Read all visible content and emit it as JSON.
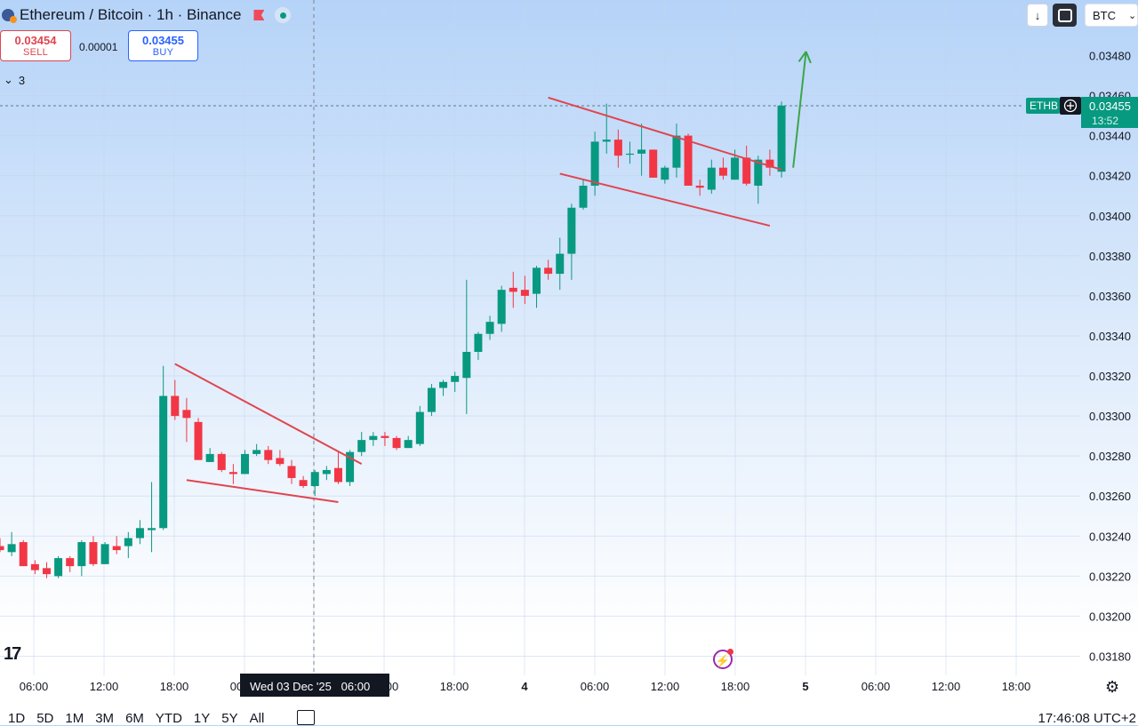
{
  "header": {
    "title": "Ethereum / Bitcoin · 1h · Binance",
    "sell_price": "0.03454",
    "sell_label": "SELL",
    "spread": "0.00001",
    "buy_price": "0.03455",
    "buy_label": "BUY",
    "indicators_count": "3"
  },
  "toolbar": {
    "currency": "BTC"
  },
  "timeframes": [
    "1D",
    "5D",
    "1M",
    "3M",
    "6M",
    "YTD",
    "1Y",
    "5Y",
    "All"
  ],
  "clock": "17:46:08 UTC+2",
  "crosshair_label": "Wed 03 Dec '25   06:00",
  "colors": {
    "up": "#089981",
    "down": "#f23645",
    "pattern": "#e0454f",
    "arrow": "#3aa64a"
  },
  "chart_data": {
    "type": "candlestick",
    "symbol": "ETHBTC",
    "timeframe": "1h",
    "current_price": "0.03455",
    "countdown": "13:52",
    "price_tag_label": "ETHB",
    "ylim": [
      0.03172,
      0.03496
    ],
    "y_ticks": [
      "0.03480",
      "0.03460",
      "0.03440",
      "0.03420",
      "0.03400",
      "0.03380",
      "0.03360",
      "0.03340",
      "0.03320",
      "0.03300",
      "0.03280",
      "0.03260",
      "0.03240",
      "0.03220",
      "0.03200",
      "0.03180"
    ],
    "x_ticks": [
      "06:00",
      "12:00",
      "18:00",
      "00:00",
      "06:00",
      "12:00",
      "18:00",
      "4",
      "06:00",
      "12:00",
      "18:00",
      "5",
      "06:00",
      "12:00",
      "18:00"
    ],
    "candles": [
      {
        "o": 0.03235,
        "h": 0.03239,
        "l": 0.03232,
        "c": 0.03233
      },
      {
        "o": 0.03232,
        "h": 0.03242,
        "l": 0.0323,
        "c": 0.03236
      },
      {
        "o": 0.03237,
        "h": 0.03238,
        "l": 0.03225,
        "c": 0.03225
      },
      {
        "o": 0.03226,
        "h": 0.03228,
        "l": 0.03221,
        "c": 0.03223
      },
      {
        "o": 0.03224,
        "h": 0.03227,
        "l": 0.03219,
        "c": 0.03221
      },
      {
        "o": 0.0322,
        "h": 0.0323,
        "l": 0.03219,
        "c": 0.03229
      },
      {
        "o": 0.03229,
        "h": 0.0323,
        "l": 0.03222,
        "c": 0.03225
      },
      {
        "o": 0.03225,
        "h": 0.03238,
        "l": 0.0322,
        "c": 0.03237
      },
      {
        "o": 0.03237,
        "h": 0.0324,
        "l": 0.03225,
        "c": 0.03226
      },
      {
        "o": 0.03226,
        "h": 0.03237,
        "l": 0.03226,
        "c": 0.03236
      },
      {
        "o": 0.03235,
        "h": 0.0324,
        "l": 0.03231,
        "c": 0.03233
      },
      {
        "o": 0.03235,
        "h": 0.03242,
        "l": 0.03229,
        "c": 0.03239
      },
      {
        "o": 0.03239,
        "h": 0.03248,
        "l": 0.03236,
        "c": 0.03244
      },
      {
        "o": 0.03243,
        "h": 0.03267,
        "l": 0.03232,
        "c": 0.03244
      },
      {
        "o": 0.03244,
        "h": 0.03325,
        "l": 0.03243,
        "c": 0.0331
      },
      {
        "o": 0.0331,
        "h": 0.03318,
        "l": 0.03298,
        "c": 0.033
      },
      {
        "o": 0.03303,
        "h": 0.03309,
        "l": 0.03287,
        "c": 0.03299
      },
      {
        "o": 0.03297,
        "h": 0.03299,
        "l": 0.03278,
        "c": 0.03278
      },
      {
        "o": 0.03277,
        "h": 0.03284,
        "l": 0.03277,
        "c": 0.03281
      },
      {
        "o": 0.03281,
        "h": 0.03282,
        "l": 0.03272,
        "c": 0.03273
      },
      {
        "o": 0.03272,
        "h": 0.03276,
        "l": 0.03266,
        "c": 0.03271
      },
      {
        "o": 0.03271,
        "h": 0.03283,
        "l": 0.03271,
        "c": 0.03281
      },
      {
        "o": 0.03281,
        "h": 0.03286,
        "l": 0.0328,
        "c": 0.03283
      },
      {
        "o": 0.03283,
        "h": 0.03285,
        "l": 0.03276,
        "c": 0.03278
      },
      {
        "o": 0.03279,
        "h": 0.03283,
        "l": 0.03275,
        "c": 0.03276
      },
      {
        "o": 0.03275,
        "h": 0.03278,
        "l": 0.03266,
        "c": 0.03269
      },
      {
        "o": 0.03268,
        "h": 0.0327,
        "l": 0.03264,
        "c": 0.03265
      },
      {
        "o": 0.03265,
        "h": 0.03273,
        "l": 0.0326,
        "c": 0.03272
      },
      {
        "o": 0.03271,
        "h": 0.03275,
        "l": 0.03268,
        "c": 0.03273
      },
      {
        "o": 0.03274,
        "h": 0.03282,
        "l": 0.03266,
        "c": 0.03267
      },
      {
        "o": 0.03267,
        "h": 0.03283,
        "l": 0.03265,
        "c": 0.03282
      },
      {
        "o": 0.03282,
        "h": 0.03292,
        "l": 0.0328,
        "c": 0.03288
      },
      {
        "o": 0.03288,
        "h": 0.03292,
        "l": 0.03285,
        "c": 0.0329
      },
      {
        "o": 0.0329,
        "h": 0.03292,
        "l": 0.03285,
        "c": 0.03289
      },
      {
        "o": 0.03289,
        "h": 0.0329,
        "l": 0.03283,
        "c": 0.03284
      },
      {
        "o": 0.03284,
        "h": 0.0329,
        "l": 0.03284,
        "c": 0.03288
      },
      {
        "o": 0.03286,
        "h": 0.03305,
        "l": 0.03285,
        "c": 0.03302
      },
      {
        "o": 0.03302,
        "h": 0.03316,
        "l": 0.033,
        "c": 0.03314
      },
      {
        "o": 0.03314,
        "h": 0.03318,
        "l": 0.0331,
        "c": 0.03317
      },
      {
        "o": 0.03317,
        "h": 0.03322,
        "l": 0.03312,
        "c": 0.0332
      },
      {
        "o": 0.03319,
        "h": 0.03368,
        "l": 0.03301,
        "c": 0.03332
      },
      {
        "o": 0.03332,
        "h": 0.03342,
        "l": 0.03328,
        "c": 0.03341
      },
      {
        "o": 0.03341,
        "h": 0.0335,
        "l": 0.03338,
        "c": 0.03347
      },
      {
        "o": 0.03346,
        "h": 0.03365,
        "l": 0.03342,
        "c": 0.03363
      },
      {
        "o": 0.03364,
        "h": 0.03372,
        "l": 0.03354,
        "c": 0.03362
      },
      {
        "o": 0.03363,
        "h": 0.0337,
        "l": 0.03356,
        "c": 0.0336
      },
      {
        "o": 0.03361,
        "h": 0.03375,
        "l": 0.03354,
        "c": 0.03374
      },
      {
        "o": 0.03374,
        "h": 0.03378,
        "l": 0.03368,
        "c": 0.03371
      },
      {
        "o": 0.03371,
        "h": 0.03389,
        "l": 0.03363,
        "c": 0.03381
      },
      {
        "o": 0.03381,
        "h": 0.03406,
        "l": 0.03368,
        "c": 0.03404
      },
      {
        "o": 0.03404,
        "h": 0.03418,
        "l": 0.03403,
        "c": 0.03415
      },
      {
        "o": 0.03415,
        "h": 0.03442,
        "l": 0.0341,
        "c": 0.03437
      },
      {
        "o": 0.03437,
        "h": 0.03456,
        "l": 0.03431,
        "c": 0.03438
      },
      {
        "o": 0.03438,
        "h": 0.03443,
        "l": 0.03424,
        "c": 0.0343
      },
      {
        "o": 0.03431,
        "h": 0.03437,
        "l": 0.03426,
        "c": 0.03431
      },
      {
        "o": 0.03431,
        "h": 0.03446,
        "l": 0.0342,
        "c": 0.03433
      },
      {
        "o": 0.03433,
        "h": 0.03433,
        "l": 0.03419,
        "c": 0.03419
      },
      {
        "o": 0.03418,
        "h": 0.03425,
        "l": 0.03416,
        "c": 0.03424
      },
      {
        "o": 0.03424,
        "h": 0.03446,
        "l": 0.03419,
        "c": 0.0344
      },
      {
        "o": 0.0344,
        "h": 0.03441,
        "l": 0.03415,
        "c": 0.03415
      },
      {
        "o": 0.03415,
        "h": 0.03418,
        "l": 0.0341,
        "c": 0.03414
      },
      {
        "o": 0.03413,
        "h": 0.03428,
        "l": 0.03411,
        "c": 0.03424
      },
      {
        "o": 0.03424,
        "h": 0.03429,
        "l": 0.03418,
        "c": 0.0342
      },
      {
        "o": 0.03418,
        "h": 0.03433,
        "l": 0.03418,
        "c": 0.03429
      },
      {
        "o": 0.03429,
        "h": 0.03435,
        "l": 0.03415,
        "c": 0.03416
      },
      {
        "o": 0.03415,
        "h": 0.0343,
        "l": 0.03406,
        "c": 0.03428
      },
      {
        "o": 0.03428,
        "h": 0.03433,
        "l": 0.0342,
        "c": 0.03424
      },
      {
        "o": 0.03422,
        "h": 0.03457,
        "l": 0.03419,
        "c": 0.03455
      }
    ],
    "annotations": [
      {
        "kind": "trendline",
        "color": "#e0454f",
        "points": [
          [
            15,
            0.03326
          ],
          [
            31,
            0.03276
          ]
        ]
      },
      {
        "kind": "trendline",
        "color": "#e0454f",
        "points": [
          [
            16,
            0.03268
          ],
          [
            29,
            0.03257
          ]
        ]
      },
      {
        "kind": "trendline",
        "color": "#e0454f",
        "points": [
          [
            47,
            0.03459
          ],
          [
            67,
            0.03423
          ]
        ]
      },
      {
        "kind": "trendline",
        "color": "#e0454f",
        "points": [
          [
            48,
            0.03421
          ],
          [
            66,
            0.03395
          ]
        ]
      },
      {
        "kind": "arrow",
        "color": "#3aa64a",
        "points": [
          [
            68,
            0.03424
          ],
          [
            69.1,
            0.03482
          ]
        ]
      }
    ]
  }
}
